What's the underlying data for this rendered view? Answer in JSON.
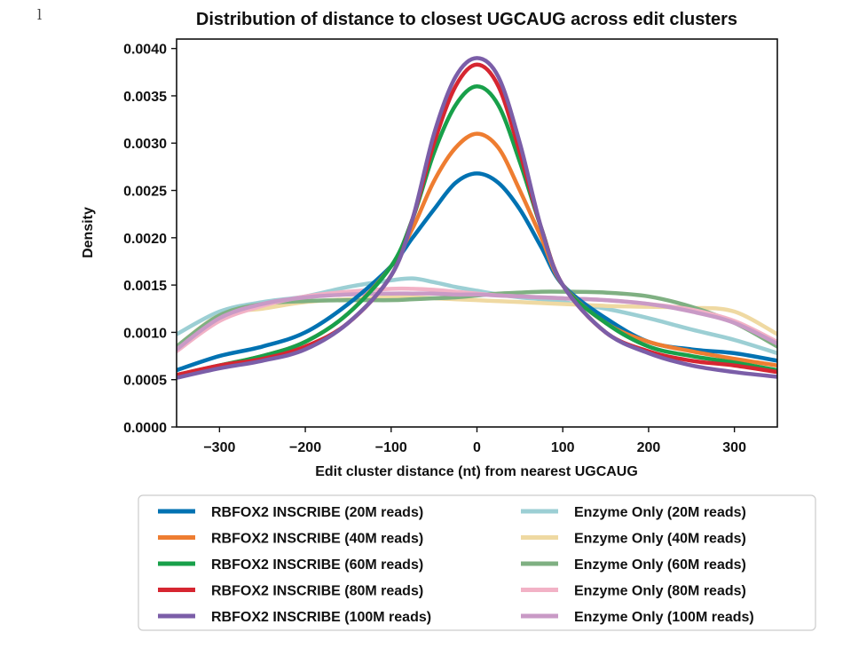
{
  "stray_mark": "l",
  "chart_data": {
    "type": "line",
    "title": "Distribution of distance to closest UGCAUG across edit clusters",
    "xlabel": "Edit cluster distance (nt) from nearest UGCAUG",
    "ylabel": "Density",
    "xlim": [
      -350,
      350
    ],
    "ylim": [
      0,
      0.0041
    ],
    "xticks": [
      -300,
      -200,
      -100,
      0,
      100,
      200,
      300
    ],
    "xtick_labels": [
      "−300",
      "−200",
      "−100",
      "0",
      "100",
      "200",
      "300"
    ],
    "yticks": [
      0,
      0.0005,
      0.001,
      0.0015,
      0.002,
      0.0025,
      0.003,
      0.0035,
      0.004
    ],
    "ytick_labels": [
      "0.0000",
      "0.0005",
      "0.0010",
      "0.0015",
      "0.0020",
      "0.0025",
      "0.0030",
      "0.0035",
      "0.0040"
    ],
    "grid": false,
    "legend_placement": "below",
    "x": [
      -350,
      -300,
      -250,
      -200,
      -150,
      -100,
      -75,
      -50,
      -25,
      0,
      25,
      50,
      75,
      100,
      150,
      200,
      250,
      300,
      350
    ],
    "series": [
      {
        "name": "RBFOX2 INSCRIBE (20M reads)",
        "color": "#0072b2",
        "values": [
          0.0006,
          0.00075,
          0.00085,
          0.001,
          0.0013,
          0.0017,
          0.002,
          0.0023,
          0.00258,
          0.00268,
          0.00258,
          0.0023,
          0.0019,
          0.0015,
          0.00115,
          0.0009,
          0.00082,
          0.00078,
          0.0007
        ]
      },
      {
        "name": "RBFOX2 INSCRIBE (40M reads)",
        "color": "#ee7d31",
        "values": [
          0.00055,
          0.00065,
          0.00075,
          0.0009,
          0.0012,
          0.0017,
          0.0021,
          0.0026,
          0.00295,
          0.0031,
          0.00295,
          0.0025,
          0.002,
          0.0015,
          0.0011,
          0.0009,
          0.0008,
          0.00072,
          0.00065
        ]
      },
      {
        "name": "RBFOX2 INSCRIBE (60M reads)",
        "color": "#18a04a",
        "values": [
          0.00055,
          0.00065,
          0.00075,
          0.0009,
          0.0012,
          0.0017,
          0.0022,
          0.0029,
          0.0034,
          0.0036,
          0.0034,
          0.0028,
          0.0021,
          0.0015,
          0.0011,
          0.00085,
          0.00075,
          0.00068,
          0.0006
        ]
      },
      {
        "name": "RBFOX2 INSCRIBE (80M reads)",
        "color": "#d62631",
        "values": [
          0.00055,
          0.00065,
          0.00072,
          0.00085,
          0.0011,
          0.0016,
          0.0022,
          0.003,
          0.0036,
          0.00383,
          0.0036,
          0.0029,
          0.0021,
          0.0015,
          0.001,
          0.0008,
          0.0007,
          0.00065,
          0.00058
        ]
      },
      {
        "name": "RBFOX2 INSCRIBE (100M reads)",
        "color": "#7b5ea8",
        "values": [
          0.00052,
          0.00062,
          0.0007,
          0.00082,
          0.0011,
          0.0016,
          0.0022,
          0.0031,
          0.0037,
          0.0039,
          0.0037,
          0.003,
          0.0021,
          0.0015,
          0.001,
          0.00078,
          0.00065,
          0.00058,
          0.00053
        ]
      },
      {
        "name": "Enzyme Only (20M reads)",
        "color": "#9ccfd4",
        "values": [
          0.00098,
          0.00122,
          0.00132,
          0.00138,
          0.00148,
          0.00155,
          0.00157,
          0.00153,
          0.00148,
          0.00144,
          0.0014,
          0.00137,
          0.00135,
          0.00132,
          0.00125,
          0.00115,
          0.00103,
          0.00092,
          0.00078
        ]
      },
      {
        "name": "Enzyme Only (40M reads)",
        "color": "#efd9a2",
        "values": [
          0.00085,
          0.00118,
          0.00125,
          0.00132,
          0.00135,
          0.00137,
          0.00137,
          0.00136,
          0.00135,
          0.00134,
          0.00133,
          0.00132,
          0.00131,
          0.0013,
          0.00128,
          0.00127,
          0.00126,
          0.00122,
          0.00098
        ]
      },
      {
        "name": "Enzyme Only (60M reads)",
        "color": "#7fb082",
        "values": [
          0.00085,
          0.00118,
          0.0013,
          0.00133,
          0.00134,
          0.00134,
          0.00135,
          0.00136,
          0.00137,
          0.00139,
          0.00141,
          0.00142,
          0.00143,
          0.00143,
          0.00142,
          0.00138,
          0.00127,
          0.0011,
          0.00085
        ]
      },
      {
        "name": "Enzyme Only (80M reads)",
        "color": "#f2b2c6",
        "values": [
          0.0008,
          0.00112,
          0.00128,
          0.00138,
          0.00143,
          0.00146,
          0.00146,
          0.00145,
          0.00143,
          0.00141,
          0.00139,
          0.00138,
          0.00137,
          0.00136,
          0.00134,
          0.0013,
          0.00124,
          0.00112,
          0.0009
        ]
      },
      {
        "name": "Enzyme Only (100M reads)",
        "color": "#c99ac6",
        "values": [
          0.00082,
          0.00115,
          0.0013,
          0.00137,
          0.0014,
          0.00141,
          0.00141,
          0.00141,
          0.0014,
          0.0014,
          0.00139,
          0.00138,
          0.00137,
          0.00136,
          0.00134,
          0.0013,
          0.00122,
          0.0011,
          0.00088
        ]
      }
    ]
  }
}
